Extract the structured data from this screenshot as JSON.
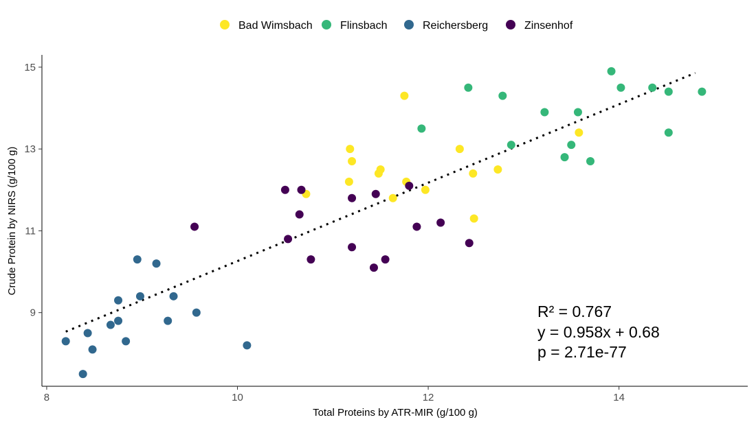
{
  "chart_data": {
    "type": "scatter",
    "xlabel": "Total Proteins by ATR-MIR (g/100 g)",
    "ylabel": "Crude Protein by NIRS (g/100 g)",
    "xlim": [
      7.95,
      15.35
    ],
    "ylim": [
      7.2,
      15.3
    ],
    "xticks": [
      8,
      10,
      12,
      14
    ],
    "yticks": [
      9,
      11,
      13,
      15
    ],
    "grid": false,
    "legend_position": "top",
    "series": [
      {
        "name": "Bad Wimsbach",
        "color": "#fde725",
        "points": [
          [
            11.75,
            14.3
          ],
          [
            13.58,
            13.4
          ],
          [
            11.18,
            13.0
          ],
          [
            12.33,
            13.0
          ],
          [
            11.2,
            12.7
          ],
          [
            11.5,
            12.5
          ],
          [
            11.48,
            12.4
          ],
          [
            12.73,
            12.5
          ],
          [
            12.47,
            12.4
          ],
          [
            11.17,
            12.2
          ],
          [
            11.77,
            12.2
          ],
          [
            11.97,
            12.0
          ],
          [
            10.72,
            11.9
          ],
          [
            11.63,
            11.8
          ],
          [
            12.48,
            11.3
          ]
        ]
      },
      {
        "name": "Flinsbach",
        "color": "#35b779",
        "points": [
          [
            13.92,
            14.9
          ],
          [
            12.42,
            14.5
          ],
          [
            14.02,
            14.5
          ],
          [
            14.35,
            14.5
          ],
          [
            12.78,
            14.3
          ],
          [
            14.52,
            14.4
          ],
          [
            14.87,
            14.4
          ],
          [
            13.22,
            13.9
          ],
          [
            13.57,
            13.9
          ],
          [
            11.93,
            13.5
          ],
          [
            14.52,
            13.4
          ],
          [
            12.87,
            13.1
          ],
          [
            13.5,
            13.1
          ],
          [
            13.43,
            12.8
          ],
          [
            13.7,
            12.7
          ]
        ]
      },
      {
        "name": "Reichersberg",
        "color": "#31688e",
        "points": [
          [
            8.95,
            10.3
          ],
          [
            9.15,
            10.2
          ],
          [
            8.75,
            9.3
          ],
          [
            8.98,
            9.4
          ],
          [
            9.33,
            9.4
          ],
          [
            9.57,
            9.0
          ],
          [
            8.67,
            8.7
          ],
          [
            8.75,
            8.8
          ],
          [
            9.27,
            8.8
          ],
          [
            8.43,
            8.5
          ],
          [
            8.2,
            8.3
          ],
          [
            8.83,
            8.3
          ],
          [
            10.1,
            8.2
          ],
          [
            8.48,
            8.1
          ],
          [
            8.38,
            7.5
          ]
        ]
      },
      {
        "name": "Zinsenhof",
        "color": "#440154",
        "points": [
          [
            10.5,
            12.0
          ],
          [
            10.67,
            12.0
          ],
          [
            11.8,
            12.1
          ],
          [
            11.45,
            11.9
          ],
          [
            11.2,
            11.8
          ],
          [
            10.65,
            11.4
          ],
          [
            9.55,
            11.1
          ],
          [
            11.88,
            11.1
          ],
          [
            12.13,
            11.2
          ],
          [
            10.53,
            10.8
          ],
          [
            12.43,
            10.7
          ],
          [
            11.2,
            10.6
          ],
          [
            10.77,
            10.3
          ],
          [
            11.55,
            10.3
          ],
          [
            11.43,
            10.1
          ]
        ]
      }
    ],
    "fit_line": {
      "slope": 0.958,
      "intercept": 0.68,
      "x_range": [
        8.2,
        14.8
      ],
      "color": "#000000",
      "style": "dotted"
    },
    "annotations": [
      "R² = 0.767",
      "y = 0.958x + 0.68",
      "p = 2.71e-77"
    ]
  }
}
